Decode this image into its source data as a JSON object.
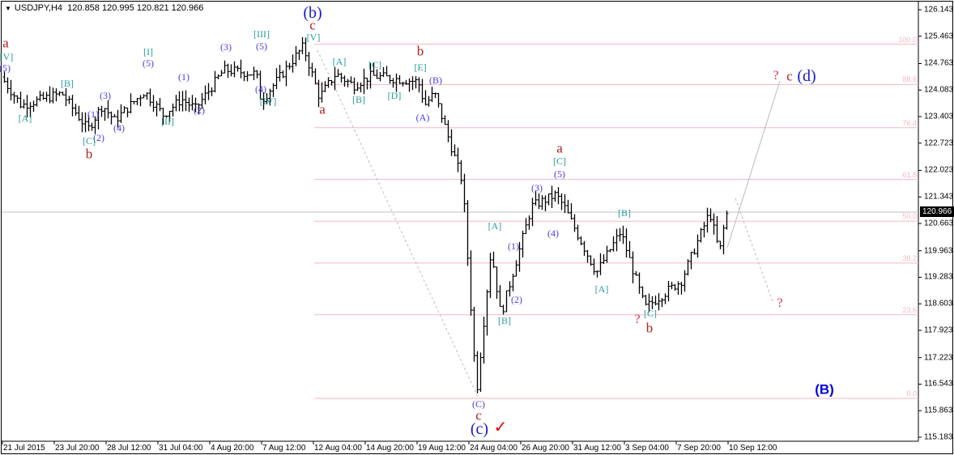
{
  "header": {
    "symbol": "USDJPY,H4",
    "open": "120.858",
    "high": "120.995",
    "low": "120.821",
    "close": "120.966"
  },
  "chart_data": {
    "type": "ohlc",
    "symbol": "USDJPY",
    "timeframe": "H4",
    "last_bar": {
      "open": 120.858,
      "high": 120.995,
      "low": 120.821,
      "close": 120.966
    },
    "current_price": "120.966",
    "ylim": [
      115.183,
      126.143
    ],
    "y_ticks": [
      "126.143",
      "125.463",
      "124.763",
      "124.083",
      "123.403",
      "122.723",
      "122.023",
      "121.343",
      "120.663",
      "119.963",
      "119.283",
      "118.603",
      "117.923",
      "117.223",
      "116.543",
      "115.863",
      "115.183"
    ],
    "x_ticks": [
      "21 Jul 2015",
      "23 Jul 20:00",
      "28 Jul 12:00",
      "31 Jul 04:00",
      "4 Aug 20:00",
      "7 Aug 12:00",
      "12 Aug 04:00",
      "14 Aug 20:00",
      "19 Aug 12:00",
      "24 Aug 04:00",
      "26 Aug 20:00",
      "31 Aug 12:00",
      "3 Sep 04:00",
      "7 Sep 20:00",
      "10 Sep 12:00"
    ],
    "fibonacci": {
      "high": 125.26,
      "low": 116.18,
      "levels": [
        "100.0",
        "88.6",
        "76.4",
        "61.8",
        "50.0",
        "38.2",
        "23.6",
        "0.0"
      ],
      "color": "#f7b7c2"
    },
    "grid": false
  },
  "wave_labels": [
    "a",
    "[V]",
    "(5)",
    "[A]",
    "[B]",
    "(3)",
    "(1)",
    "(2)",
    "[C]",
    "b",
    "(4)",
    "[I]",
    "(5)",
    "(1)",
    "(2)",
    "[II]",
    "(3)",
    "(5)",
    "[III]",
    "(4)",
    "[IV]",
    "(b)",
    "c",
    "[V]",
    "a",
    "[A]",
    "[B]",
    "[C]",
    "[D]",
    "b",
    "[E]",
    "(B)",
    "(A)",
    "a",
    "[C]",
    "(5)",
    "(3)",
    "(4)",
    "[A]",
    "(1)",
    "(2)",
    "[B]",
    "[B]",
    "[A]",
    "[C]",
    "?",
    "b",
    "?",
    "?",
    "c",
    "(d)",
    "(C)",
    "c",
    "(c)",
    "✓",
    "(B)"
  ],
  "colors": {
    "bars": "#000000",
    "fib": "#f7b7c2",
    "price_line": "#c0c0c0",
    "wave_red": "#b02020",
    "wave_teal": "#2a9a9a",
    "wave_blue": "#4a3cf0"
  }
}
